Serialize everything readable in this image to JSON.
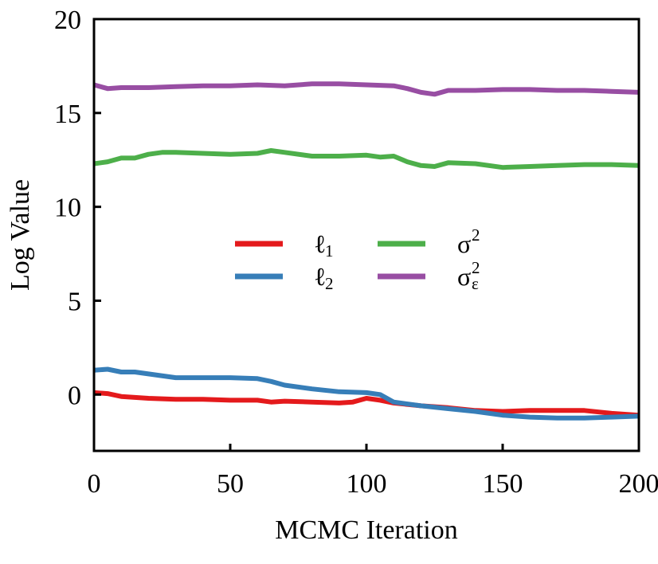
{
  "chart_data": {
    "type": "line",
    "xlabel": "MCMC Iteration",
    "ylabel": "Log Value",
    "xlim": [
      0,
      200
    ],
    "ylim": [
      -3,
      20
    ],
    "xticks": [
      "0",
      "50",
      "100",
      "150",
      "200"
    ],
    "yticks": [
      "0",
      "5",
      "10",
      "15",
      "20"
    ],
    "grid": false,
    "legend_position": "center",
    "series": [
      {
        "name": "ℓ1",
        "label_base": "ℓ",
        "label_sub": "1",
        "color": "#e41a1c",
        "x": [
          0,
          5,
          10,
          20,
          30,
          40,
          50,
          60,
          65,
          70,
          80,
          90,
          95,
          100,
          105,
          110,
          120,
          130,
          140,
          150,
          160,
          170,
          180,
          190,
          200
        ],
        "y": [
          0.1,
          0.05,
          -0.1,
          -0.2,
          -0.25,
          -0.25,
          -0.3,
          -0.3,
          -0.4,
          -0.35,
          -0.4,
          -0.45,
          -0.4,
          -0.2,
          -0.3,
          -0.45,
          -0.6,
          -0.7,
          -0.85,
          -0.9,
          -0.85,
          -0.85,
          -0.85,
          -1.0,
          -1.1
        ]
      },
      {
        "name": "ℓ2",
        "label_base": "ℓ",
        "label_sub": "2",
        "color": "#377eb8",
        "x": [
          0,
          5,
          10,
          15,
          20,
          30,
          40,
          50,
          60,
          65,
          70,
          80,
          90,
          100,
          105,
          110,
          120,
          130,
          140,
          150,
          160,
          170,
          180,
          190,
          200
        ],
        "y": [
          1.3,
          1.35,
          1.2,
          1.2,
          1.1,
          0.9,
          0.9,
          0.9,
          0.85,
          0.7,
          0.5,
          0.3,
          0.15,
          0.1,
          0.0,
          -0.4,
          -0.6,
          -0.75,
          -0.9,
          -1.1,
          -1.2,
          -1.25,
          -1.25,
          -1.2,
          -1.15
        ]
      },
      {
        "name": "σ2",
        "label_base": "σ",
        "label_sup": "2",
        "color": "#4daf4a",
        "x": [
          0,
          5,
          10,
          15,
          20,
          25,
          30,
          40,
          50,
          60,
          65,
          70,
          80,
          90,
          100,
          105,
          110,
          115,
          120,
          125,
          130,
          140,
          150,
          160,
          170,
          180,
          190,
          200
        ],
        "y": [
          12.3,
          12.4,
          12.6,
          12.6,
          12.8,
          12.9,
          12.9,
          12.85,
          12.8,
          12.85,
          13.0,
          12.9,
          12.7,
          12.7,
          12.75,
          12.65,
          12.7,
          12.4,
          12.2,
          12.15,
          12.35,
          12.3,
          12.1,
          12.15,
          12.2,
          12.25,
          12.25,
          12.2
        ]
      },
      {
        "name": "σε2",
        "label_base": "σ",
        "label_sup": "2",
        "label_sub": "ε",
        "color": "#984ea3",
        "x": [
          0,
          5,
          10,
          20,
          30,
          40,
          50,
          60,
          70,
          80,
          90,
          100,
          110,
          115,
          120,
          125,
          130,
          140,
          150,
          160,
          170,
          180,
          190,
          200
        ],
        "y": [
          16.5,
          16.3,
          16.35,
          16.35,
          16.4,
          16.45,
          16.45,
          16.5,
          16.45,
          16.55,
          16.55,
          16.5,
          16.45,
          16.3,
          16.1,
          16.0,
          16.2,
          16.2,
          16.25,
          16.25,
          16.2,
          16.2,
          16.15,
          16.1
        ]
      }
    ]
  }
}
